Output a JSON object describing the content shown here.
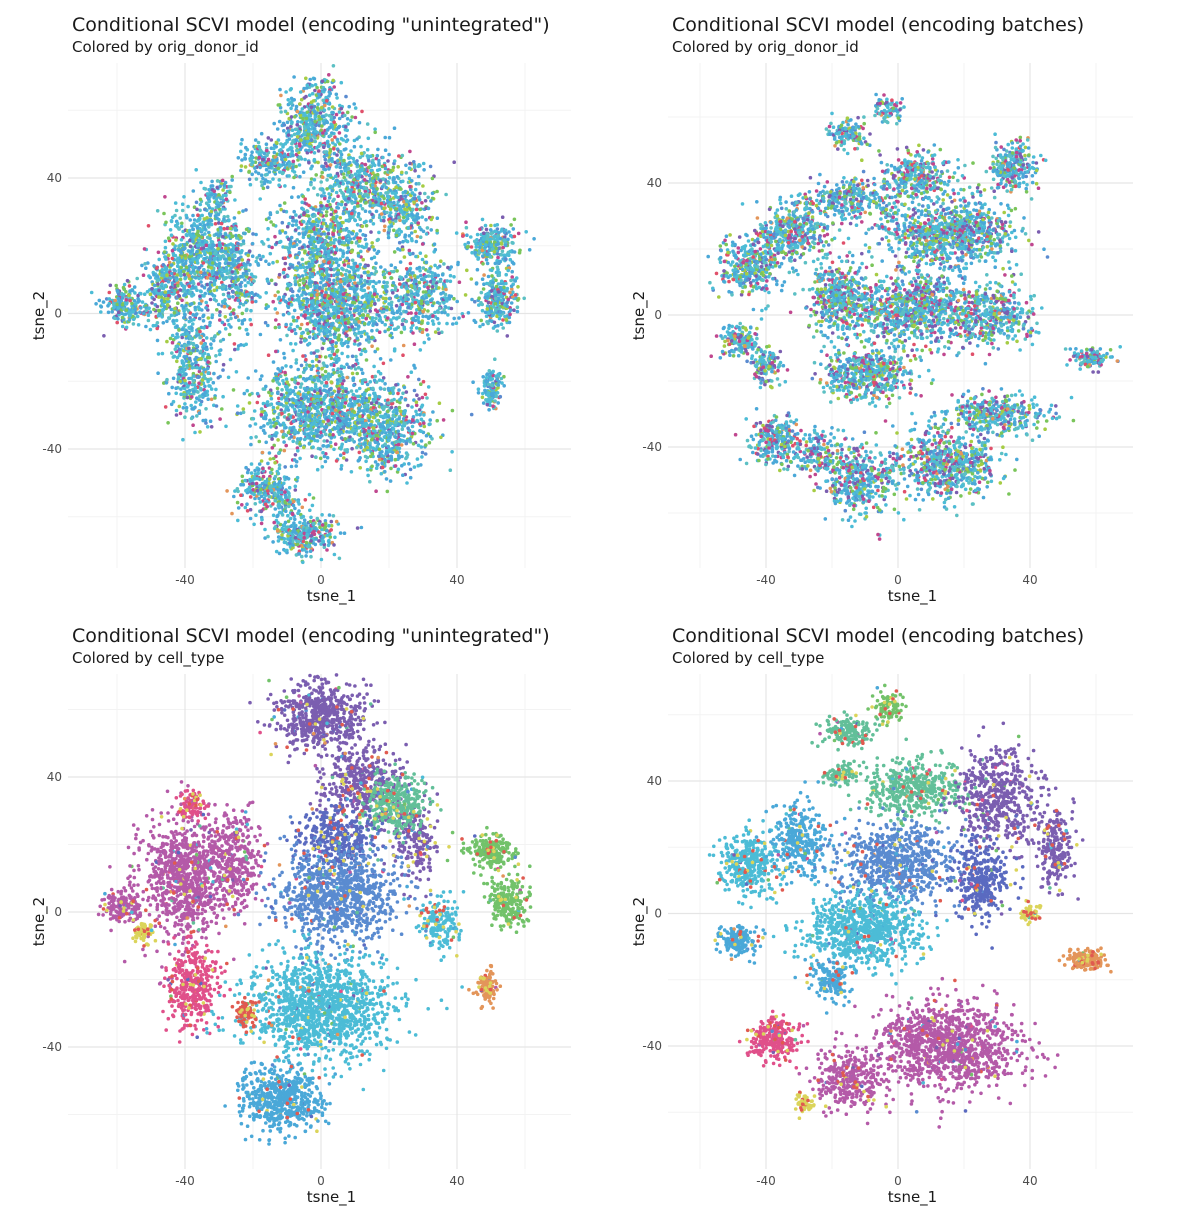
{
  "chart_data": [
    {
      "type": "scatter",
      "title": "Conditional SCVI model (encoding \"unintegrated\")",
      "subtitle": "Colored by orig_donor_id",
      "xlabel": "tsne_1",
      "ylabel": "tsne_2",
      "xlim": [
        -70,
        75
      ],
      "ylim": [
        -78,
        76
      ],
      "xticks": [
        -40,
        0,
        40
      ],
      "yticks": [
        -40,
        0,
        40
      ],
      "grid": true,
      "legend": "none",
      "palette": [
        "#4aa8d8",
        "#4cbcd6",
        "#5cc0c4",
        "#7ac55a",
        "#a6cc44",
        "#7b5eb0",
        "#c0478f",
        "#e0506a",
        "#e3955a",
        "#5a8bd0"
      ],
      "weights": [
        0.28,
        0.26,
        0.12,
        0.1,
        0.06,
        0.05,
        0.05,
        0.03,
        0.02,
        0.03
      ],
      "clusters": [
        {
          "x": -58,
          "y": 2,
          "sx": 4,
          "sy": 4,
          "n": 180
        },
        {
          "x": -45,
          "y": 6,
          "sx": 5,
          "sy": 8,
          "n": 300
        },
        {
          "x": -35,
          "y": 18,
          "sx": 7,
          "sy": 10,
          "n": 600
        },
        {
          "x": -38,
          "y": -15,
          "sx": 5,
          "sy": 12,
          "n": 400
        },
        {
          "x": -25,
          "y": 10,
          "sx": 5,
          "sy": 12,
          "n": 320
        },
        {
          "x": -15,
          "y": 45,
          "sx": 6,
          "sy": 4,
          "n": 220
        },
        {
          "x": -2,
          "y": 55,
          "sx": 7,
          "sy": 9,
          "n": 500
        },
        {
          "x": 12,
          "y": 38,
          "sx": 9,
          "sy": 8,
          "n": 500
        },
        {
          "x": 25,
          "y": 30,
          "sx": 6,
          "sy": 8,
          "n": 250
        },
        {
          "x": 0,
          "y": 22,
          "sx": 9,
          "sy": 8,
          "n": 500
        },
        {
          "x": 5,
          "y": 3,
          "sx": 12,
          "sy": 10,
          "n": 1100
        },
        {
          "x": 30,
          "y": 5,
          "sx": 7,
          "sy": 8,
          "n": 350
        },
        {
          "x": 50,
          "y": 20,
          "sx": 5,
          "sy": 4,
          "n": 250
        },
        {
          "x": 52,
          "y": 5,
          "sx": 4,
          "sy": 6,
          "n": 250
        },
        {
          "x": 50,
          "y": -22,
          "sx": 2,
          "sy": 4,
          "n": 120
        },
        {
          "x": 0,
          "y": -28,
          "sx": 14,
          "sy": 9,
          "n": 1100
        },
        {
          "x": 20,
          "y": -35,
          "sx": 9,
          "sy": 9,
          "n": 500
        },
        {
          "x": -15,
          "y": -52,
          "sx": 6,
          "sy": 5,
          "n": 300
        },
        {
          "x": -5,
          "y": -65,
          "sx": 6,
          "sy": 4,
          "n": 300
        },
        {
          "x": -30,
          "y": 35,
          "sx": 3,
          "sy": 3,
          "n": 80
        }
      ]
    },
    {
      "type": "scatter",
      "title": "Conditional SCVI model (encoding batches)",
      "subtitle": "Colored by orig_donor_id",
      "xlabel": "tsne_1",
      "ylabel": "tsne_2",
      "xlim": [
        -65,
        72
      ],
      "ylim": [
        -70,
        72
      ],
      "xticks": [
        -40,
        0,
        40
      ],
      "yticks": [
        -40,
        0,
        40
      ],
      "grid": true,
      "legend": "none",
      "palette": [
        "#4aa8d8",
        "#4cbcd6",
        "#5cc0c4",
        "#7ac55a",
        "#a6cc44",
        "#7b5eb0",
        "#c0478f",
        "#e0506a",
        "#e3955a",
        "#5a8bd0"
      ],
      "weights": [
        0.22,
        0.22,
        0.14,
        0.1,
        0.06,
        0.09,
        0.08,
        0.03,
        0.02,
        0.04
      ],
      "clusters": [
        {
          "x": -45,
          "y": 15,
          "sx": 6,
          "sy": 6,
          "n": 350
        },
        {
          "x": -32,
          "y": 25,
          "sx": 7,
          "sy": 6,
          "n": 400
        },
        {
          "x": -48,
          "y": -8,
          "sx": 4,
          "sy": 3,
          "n": 150
        },
        {
          "x": -40,
          "y": -15,
          "sx": 3,
          "sy": 4,
          "n": 120
        },
        {
          "x": -15,
          "y": 35,
          "sx": 8,
          "sy": 4,
          "n": 300
        },
        {
          "x": 15,
          "y": 25,
          "sx": 14,
          "sy": 7,
          "n": 900
        },
        {
          "x": 35,
          "y": 45,
          "sx": 5,
          "sy": 5,
          "n": 250
        },
        {
          "x": 5,
          "y": 42,
          "sx": 8,
          "sy": 5,
          "n": 300
        },
        {
          "x": -15,
          "y": 55,
          "sx": 4,
          "sy": 3,
          "n": 120
        },
        {
          "x": -3,
          "y": 62,
          "sx": 3,
          "sy": 3,
          "n": 80
        },
        {
          "x": -18,
          "y": 5,
          "sx": 6,
          "sy": 7,
          "n": 400
        },
        {
          "x": 5,
          "y": 2,
          "sx": 14,
          "sy": 7,
          "n": 900
        },
        {
          "x": -10,
          "y": -18,
          "sx": 9,
          "sy": 5,
          "n": 500
        },
        {
          "x": 30,
          "y": 0,
          "sx": 8,
          "sy": 6,
          "n": 350
        },
        {
          "x": 58,
          "y": -13,
          "sx": 4,
          "sy": 2,
          "n": 120
        },
        {
          "x": -37,
          "y": -38,
          "sx": 5,
          "sy": 5,
          "n": 250
        },
        {
          "x": -24,
          "y": -42,
          "sx": 4,
          "sy": 4,
          "n": 150
        },
        {
          "x": -12,
          "y": -50,
          "sx": 7,
          "sy": 7,
          "n": 400
        },
        {
          "x": 15,
          "y": -45,
          "sx": 10,
          "sy": 7,
          "n": 650
        },
        {
          "x": 30,
          "y": -30,
          "sx": 10,
          "sy": 4,
          "n": 350
        }
      ]
    },
    {
      "type": "scatter",
      "title": "Conditional SCVI model (encoding \"unintegrated\")",
      "subtitle": "Colored by cell_type",
      "xlabel": "tsne_1",
      "ylabel": "tsne_2",
      "xlim": [
        -70,
        75
      ],
      "ylim": [
        -78,
        76
      ],
      "xticks": [
        -40,
        0,
        40
      ],
      "yticks": [
        -40,
        0,
        40
      ],
      "grid": true,
      "legend": "none",
      "palette": [
        "#b45aa8",
        "#7b5eb0",
        "#5a8bd0",
        "#4cbcd6",
        "#4aa8d8",
        "#62bf99",
        "#72c26a",
        "#e0508a",
        "#e3955a",
        "#dbd45a",
        "#e05a50",
        "#5a6ac0"
      ],
      "clusters": [
        {
          "x": -58,
          "y": 2,
          "sx": 4,
          "sy": 4,
          "n": 150,
          "c": 0
        },
        {
          "x": -40,
          "y": 10,
          "sx": 9,
          "sy": 12,
          "n": 900,
          "c": 0
        },
        {
          "x": -25,
          "y": 15,
          "sx": 5,
          "sy": 10,
          "n": 300,
          "c": 0
        },
        {
          "x": -38,
          "y": -22,
          "sx": 5,
          "sy": 8,
          "n": 350,
          "c": 7
        },
        {
          "x": -38,
          "y": 32,
          "sx": 3,
          "sy": 3,
          "n": 80,
          "c": 7
        },
        {
          "x": -52,
          "y": -6,
          "sx": 2,
          "sy": 2,
          "n": 60,
          "c": 9
        },
        {
          "x": 0,
          "y": 58,
          "sx": 9,
          "sy": 7,
          "n": 550,
          "c": 1
        },
        {
          "x": 28,
          "y": 22,
          "sx": 4,
          "sy": 8,
          "n": 180,
          "c": 1
        },
        {
          "x": 12,
          "y": 38,
          "sx": 8,
          "sy": 8,
          "n": 400,
          "c": 1
        },
        {
          "x": 22,
          "y": 32,
          "sx": 6,
          "sy": 6,
          "n": 350,
          "c": 5
        },
        {
          "x": 5,
          "y": 22,
          "sx": 8,
          "sy": 6,
          "n": 350,
          "c": 11
        },
        {
          "x": 5,
          "y": 5,
          "sx": 12,
          "sy": 9,
          "n": 900,
          "c": 2
        },
        {
          "x": 35,
          "y": -3,
          "sx": 4,
          "sy": 5,
          "n": 150,
          "c": 3
        },
        {
          "x": 0,
          "y": -28,
          "sx": 14,
          "sy": 10,
          "n": 1300,
          "c": 3
        },
        {
          "x": -12,
          "y": -55,
          "sx": 8,
          "sy": 6,
          "n": 550,
          "c": 4
        },
        {
          "x": 50,
          "y": 18,
          "sx": 4,
          "sy": 3,
          "n": 220,
          "c": 6
        },
        {
          "x": 55,
          "y": 3,
          "sx": 4,
          "sy": 5,
          "n": 220,
          "c": 6
        },
        {
          "x": 49,
          "y": -22,
          "sx": 2,
          "sy": 3,
          "n": 120,
          "c": 8
        },
        {
          "x": -22,
          "y": -30,
          "sx": 2,
          "sy": 3,
          "n": 60,
          "c": 10
        }
      ],
      "sprinkle": {
        "n": 300,
        "c": [
          9,
          10
        ]
      }
    },
    {
      "type": "scatter",
      "title": "Conditional SCVI model (encoding batches)",
      "subtitle": "Colored by cell_type",
      "xlabel": "tsne_1",
      "ylabel": "tsne_2",
      "xlim": [
        -65,
        72
      ],
      "ylim": [
        -70,
        72
      ],
      "xticks": [
        -40,
        0,
        40
      ],
      "yticks": [
        -40,
        0,
        40
      ],
      "grid": true,
      "legend": "none",
      "palette": [
        "#b45aa8",
        "#7b5eb0",
        "#5a8bd0",
        "#4cbcd6",
        "#4aa8d8",
        "#62bf99",
        "#72c26a",
        "#e0508a",
        "#e3955a",
        "#dbd45a",
        "#e05a50",
        "#5a6ac0"
      ],
      "clusters": [
        {
          "x": -45,
          "y": 15,
          "sx": 6,
          "sy": 6,
          "n": 350,
          "c": 3
        },
        {
          "x": -30,
          "y": 22,
          "sx": 6,
          "sy": 7,
          "n": 300,
          "c": 4
        },
        {
          "x": -48,
          "y": -8,
          "sx": 4,
          "sy": 3,
          "n": 150,
          "c": 4
        },
        {
          "x": -15,
          "y": 55,
          "sx": 5,
          "sy": 3,
          "n": 150,
          "c": 5
        },
        {
          "x": -3,
          "y": 62,
          "sx": 3,
          "sy": 3,
          "n": 80,
          "c": 6
        },
        {
          "x": -18,
          "y": 42,
          "sx": 4,
          "sy": 2,
          "n": 80,
          "c": 5
        },
        {
          "x": 5,
          "y": 38,
          "sx": 10,
          "sy": 6,
          "n": 450,
          "c": 5
        },
        {
          "x": 30,
          "y": 35,
          "sx": 8,
          "sy": 10,
          "n": 500,
          "c": 1
        },
        {
          "x": 48,
          "y": 20,
          "sx": 4,
          "sy": 8,
          "n": 200,
          "c": 1
        },
        {
          "x": 0,
          "y": 15,
          "sx": 12,
          "sy": 8,
          "n": 700,
          "c": 2
        },
        {
          "x": 25,
          "y": 10,
          "sx": 6,
          "sy": 8,
          "n": 350,
          "c": 11
        },
        {
          "x": -10,
          "y": -5,
          "sx": 12,
          "sy": 7,
          "n": 800,
          "c": 3
        },
        {
          "x": -20,
          "y": -20,
          "sx": 4,
          "sy": 4,
          "n": 150,
          "c": 4
        },
        {
          "x": 57,
          "y": -14,
          "sx": 4,
          "sy": 2,
          "n": 150,
          "c": 8
        },
        {
          "x": -38,
          "y": -38,
          "sx": 5,
          "sy": 4,
          "n": 250,
          "c": 7
        },
        {
          "x": 15,
          "y": -40,
          "sx": 14,
          "sy": 9,
          "n": 1100,
          "c": 0
        },
        {
          "x": -15,
          "y": -50,
          "sx": 7,
          "sy": 6,
          "n": 300,
          "c": 0
        },
        {
          "x": -28,
          "y": -57,
          "sx": 2,
          "sy": 2,
          "n": 40,
          "c": 9
        },
        {
          "x": 40,
          "y": 0,
          "sx": 2,
          "sy": 2,
          "n": 40,
          "c": 9
        }
      ],
      "sprinkle": {
        "n": 250,
        "c": [
          9,
          10
        ]
      }
    }
  ]
}
